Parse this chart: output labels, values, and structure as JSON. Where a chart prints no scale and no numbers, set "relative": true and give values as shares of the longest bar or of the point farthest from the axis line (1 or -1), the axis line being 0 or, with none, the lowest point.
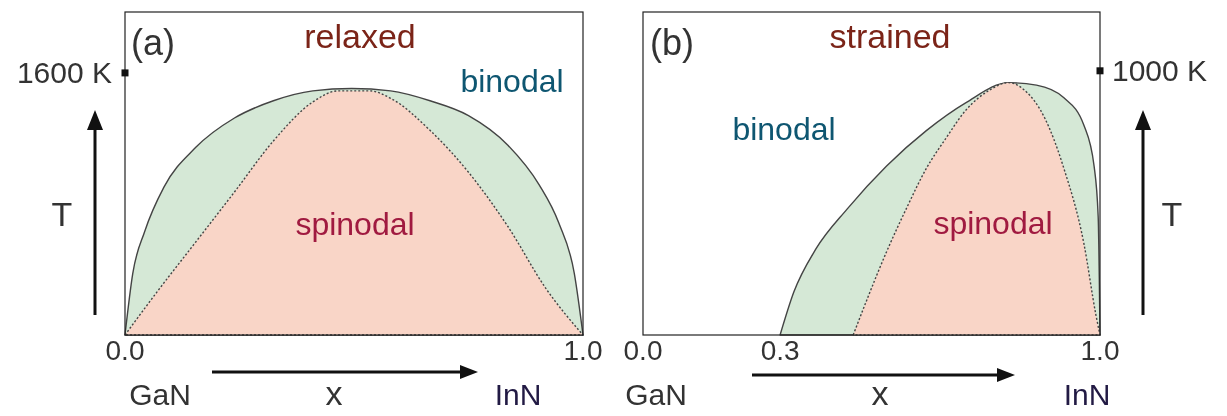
{
  "chart_data": [
    {
      "type": "area",
      "title": "relaxed",
      "xlabel": "x",
      "ylabel": "T",
      "relative": true,
      "xlim": [
        0,
        1
      ],
      "xticks": [
        {
          "value": 0,
          "label": "0.0"
        },
        {
          "value": 1,
          "label": "1.0"
        }
      ],
      "annotations": [
        "(a)",
        "1600 K",
        "GaN",
        "InN"
      ],
      "series": [
        {
          "name": "binodal",
          "color": "#d5e8d6",
          "line_style": "solid",
          "x": [
            0,
            0.017,
            0.043,
            0.085,
            0.154,
            0.239,
            0.324,
            0.41,
            0.495,
            0.58,
            0.666,
            0.75,
            0.836,
            0.904,
            0.947,
            0.981,
            1
          ],
          "values": [
            0,
            0.25,
            0.42,
            0.6,
            0.76,
            0.88,
            0.95,
            0.99,
            1,
            0.99,
            0.95,
            0.89,
            0.77,
            0.61,
            0.455,
            0.25,
            0
          ]
        },
        {
          "name": "spinodal",
          "color": "#f9d5c7",
          "line_style": "dotted",
          "x": [
            0,
            0.068,
            0.154,
            0.239,
            0.324,
            0.41,
            0.465,
            0.535,
            0.58,
            0.666,
            0.75,
            0.836,
            0.92,
            1
          ],
          "values": [
            0,
            0.17,
            0.376,
            0.58,
            0.787,
            0.945,
            0.99,
            0.99,
            0.96,
            0.83,
            0.66,
            0.44,
            0.186,
            0
          ]
        }
      ]
    },
    {
      "type": "area",
      "title": "strained",
      "xlabel": "x",
      "ylabel": "T",
      "relative": true,
      "xlim": [
        0,
        1
      ],
      "xticks": [
        {
          "value": 0,
          "label": "0.0"
        },
        {
          "value": 0.3,
          "label": "0.3"
        },
        {
          "value": 1,
          "label": "1.0"
        }
      ],
      "annotations": [
        "(b)",
        "1000 K",
        "GaN",
        "InN"
      ],
      "series": [
        {
          "name": "binodal",
          "color": "#d5e8d6",
          "line_style": "solid",
          "x": [
            0.3,
            0.33,
            0.378,
            0.447,
            0.533,
            0.62,
            0.706,
            0.8,
            0.861,
            0.921,
            0.965,
            0.987,
            0.996,
            1
          ],
          "values": [
            0,
            0.17,
            0.34,
            0.5,
            0.67,
            0.81,
            0.92,
            1,
            0.99,
            0.94,
            0.83,
            0.67,
            0.47,
            0
          ]
        },
        {
          "name": "spinodal",
          "color": "#f9d5c7",
          "line_style": "dotted",
          "x": [
            0.46,
            0.49,
            0.533,
            0.576,
            0.62,
            0.663,
            0.706,
            0.758,
            0.8,
            0.835,
            0.879,
            0.921,
            0.965,
            0.991,
            1
          ],
          "values": [
            0,
            0.14,
            0.33,
            0.5,
            0.66,
            0.78,
            0.89,
            0.97,
            1,
            0.97,
            0.86,
            0.66,
            0.36,
            0.08,
            0
          ]
        }
      ]
    }
  ]
}
